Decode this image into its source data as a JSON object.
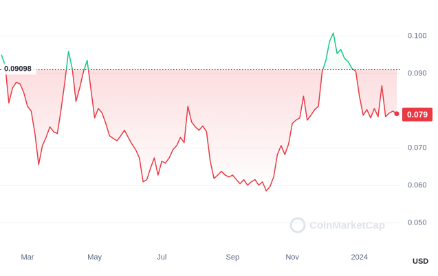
{
  "chart_data": {
    "type": "line",
    "categories": [
      null,
      null,
      null,
      null,
      null,
      null,
      null,
      "Mar",
      null,
      null,
      null,
      null,
      null,
      null,
      null,
      null,
      null,
      null,
      null,
      null,
      null,
      null,
      null,
      null,
      null,
      "May",
      null,
      null,
      null,
      null,
      null,
      null,
      null,
      null,
      null,
      null,
      null,
      null,
      null,
      null,
      null,
      null,
      null,
      "Jul",
      null,
      null,
      null,
      null,
      null,
      null,
      null,
      null,
      null,
      null,
      null,
      null,
      null,
      null,
      null,
      null,
      null,
      null,
      "Sep",
      null,
      null,
      null,
      null,
      null,
      null,
      null,
      null,
      null,
      null,
      null,
      null,
      null,
      null,
      null,
      "Nov",
      null,
      null,
      null,
      null,
      null,
      null,
      null,
      null,
      null,
      null,
      null,
      null,
      null,
      null,
      null,
      null,
      null,
      "2024",
      null,
      null,
      null,
      null,
      null,
      null,
      null,
      null,
      null,
      null
    ],
    "values": [
      0.095,
      0.0922,
      0.0821,
      0.0861,
      0.0876,
      0.0872,
      0.0849,
      0.0812,
      0.0799,
      0.0739,
      0.0656,
      0.0707,
      0.0729,
      0.0757,
      0.0744,
      0.0739,
      0.0803,
      0.0876,
      0.0959,
      0.0913,
      0.0825,
      0.0861,
      0.0904,
      0.0935,
      0.0858,
      0.0781,
      0.0806,
      0.0794,
      0.0766,
      0.0733,
      0.0726,
      0.072,
      0.0733,
      0.0748,
      0.0729,
      0.0711,
      0.0696,
      0.0674,
      0.061,
      0.0616,
      0.0647,
      0.0674,
      0.0628,
      0.0665,
      0.066,
      0.0674,
      0.0696,
      0.0707,
      0.0729,
      0.0715,
      0.0812,
      0.077,
      0.0757,
      0.0748,
      0.0759,
      0.0744,
      0.0665,
      0.0619,
      0.0628,
      0.0638,
      0.0628,
      0.0623,
      0.0628,
      0.0616,
      0.0605,
      0.0616,
      0.0601,
      0.061,
      0.0616,
      0.0601,
      0.061,
      0.0586,
      0.0597,
      0.0623,
      0.0683,
      0.0707,
      0.0683,
      0.0711,
      0.0766,
      0.0775,
      0.0781,
      0.0839,
      0.0775,
      0.0788,
      0.0803,
      0.0812,
      0.0904,
      0.0935,
      0.0986,
      0.1008,
      0.0953,
      0.0964,
      0.094,
      0.0931,
      0.0913,
      0.0906,
      0.0839,
      0.0788,
      0.0803,
      0.0781,
      0.0806,
      0.0784,
      0.0867,
      0.0784,
      0.0794,
      0.0799,
      0.0792
    ],
    "baseline": 0.09098,
    "current_price": 0.079,
    "ylim": [
      0.0439,
      0.1087
    ],
    "yticks": [
      {
        "value": 0.05,
        "label": "0.050"
      },
      {
        "value": 0.06,
        "label": "0.060"
      },
      {
        "value": 0.07,
        "label": "0.070"
      },
      {
        "value": 0.09,
        "label": "0.090"
      },
      {
        "value": 0.1,
        "label": "0.100"
      }
    ],
    "grid": true,
    "up_color": "#16c784",
    "down_color": "#ea3943",
    "currency": "USD",
    "watermark": "CoinMarketCap"
  }
}
